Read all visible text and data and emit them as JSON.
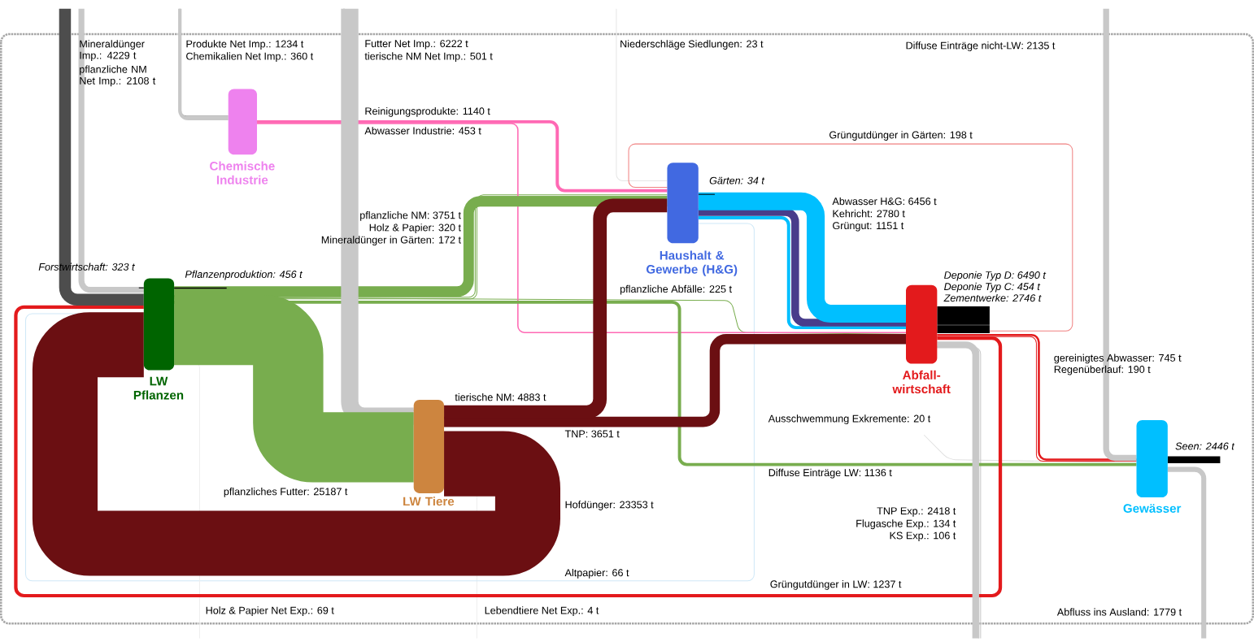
{
  "chart_data": {
    "type": "other",
    "annotations": [
      "Chemische Industrie",
      "Haushalt & Gewerbe (H&G)",
      "LW Pflanzen",
      "LW Tiere",
      "Abfall-wirtschaft",
      "Gewässer"
    ],
    "categories": [
      "Mineraldünger Imp.",
      "pflanzliche NM Net Imp.",
      "Produkte Net Imp.",
      "Chemikalien Net Imp.",
      "Futter Net Imp.",
      "tierische NM Net Imp.",
      "Niederschläge Siedlungen",
      "Diffuse Einträge nicht-LW",
      "Reinigungsprodukte",
      "Abwasser Industrie",
      "Grüngutdünger in Gärten",
      "pflanzliche NM",
      "Holz & Papier",
      "Mineraldünger in Gärten",
      "Abwasser H&G",
      "Kehricht",
      "Grüngut",
      "pflanzliche Abfälle",
      "gereinigtes Abwasser",
      "Regenüberlauf",
      "tierische NM",
      "TNP",
      "Ausschwemmung Exkremente",
      "Diffuse Einträge LW",
      "pflanzliches Futter",
      "Hofdünger",
      "TNP Exp.",
      "Flugasche Exp.",
      "KS Exp.",
      "Altpapier",
      "Grüngutdünger in LW",
      "Holz & Papier Net Exp.",
      "Lebendtiere Net Exp.",
      "Abfluss ins Ausland",
      "Gärten",
      "Forstwirtschaft",
      "Pflanzenproduktion",
      "Deponie Typ D",
      "Deponie Typ C",
      "Zementwerke",
      "Seen"
    ],
    "values": [
      4229,
      2108,
      1234,
      360,
      6222,
      501,
      23,
      2135,
      1140,
      453,
      198,
      3751,
      320,
      172,
      6456,
      2780,
      1151,
      225,
      745,
      190,
      4883,
      3651,
      20,
      1136,
      25187,
      23353,
      2418,
      134,
      106,
      66,
      1237,
      69,
      4,
      1779,
      34,
      323,
      456,
      6490,
      454,
      2746,
      2446
    ],
    "value_labels": [
      ": 4229 t",
      ": 2108 t",
      ": 1234 t",
      ": 360 t",
      ": 6222 t",
      ": 501 t",
      ": 23 t",
      ": 2135 t",
      ": 1140 t",
      ": 453 t",
      ": 198 t",
      ": 3751 t",
      ": 320 t",
      ": 172 t",
      ": 6456 t",
      ": 2780 t",
      ": 1151 t",
      ": 225 t",
      ": 745 t",
      ": 190 t",
      ": 4883 t",
      ": 3651 t",
      ": 20 t",
      ": 1136 t",
      ": 25187 t",
      ": 23353 t",
      ": 2418 t",
      ": 134 t",
      ": 106 t",
      ": 66 t",
      ": 1237 t",
      ": 69 t",
      ": 4 t",
      ": 1779 t",
      ": 34 t",
      ": 323 t",
      ": 456 t",
      ": 6490 t",
      ": 454 t",
      ": 2746 t",
      ": 2446 t"
    ],
    "colors": [
      "#4d4d4d",
      "#c8c8c8",
      "#c8c8c8",
      "#a0a0a0",
      "#c8c8c8",
      "#a0a0a0",
      "#e6e6e6",
      "#c8c8c8",
      "#ff69b4",
      "#ff69b4",
      "#f08080",
      "#78ad4e",
      "#78ad4e",
      "#78ad4e",
      "#00bfff",
      "#483d8b",
      "#00bfff",
      "#78ad4e",
      "#e31a1c",
      "#e31a1c",
      "#6b0f12",
      "#6b0f12",
      "#e0e0e0",
      "#78ad4e",
      "#78ad4e",
      "#6b0f12",
      "#c8c8c8",
      "#c8c8c8",
      "#c8c8c8",
      "#cfe8f7",
      "#e31a1c",
      "#eeeeee",
      "#eeeeee",
      "#c8c8c8",
      "#000000",
      "#000000",
      "#000000",
      "#000000",
      "#000000",
      "#000000",
      "#000000"
    ]
  }
}
